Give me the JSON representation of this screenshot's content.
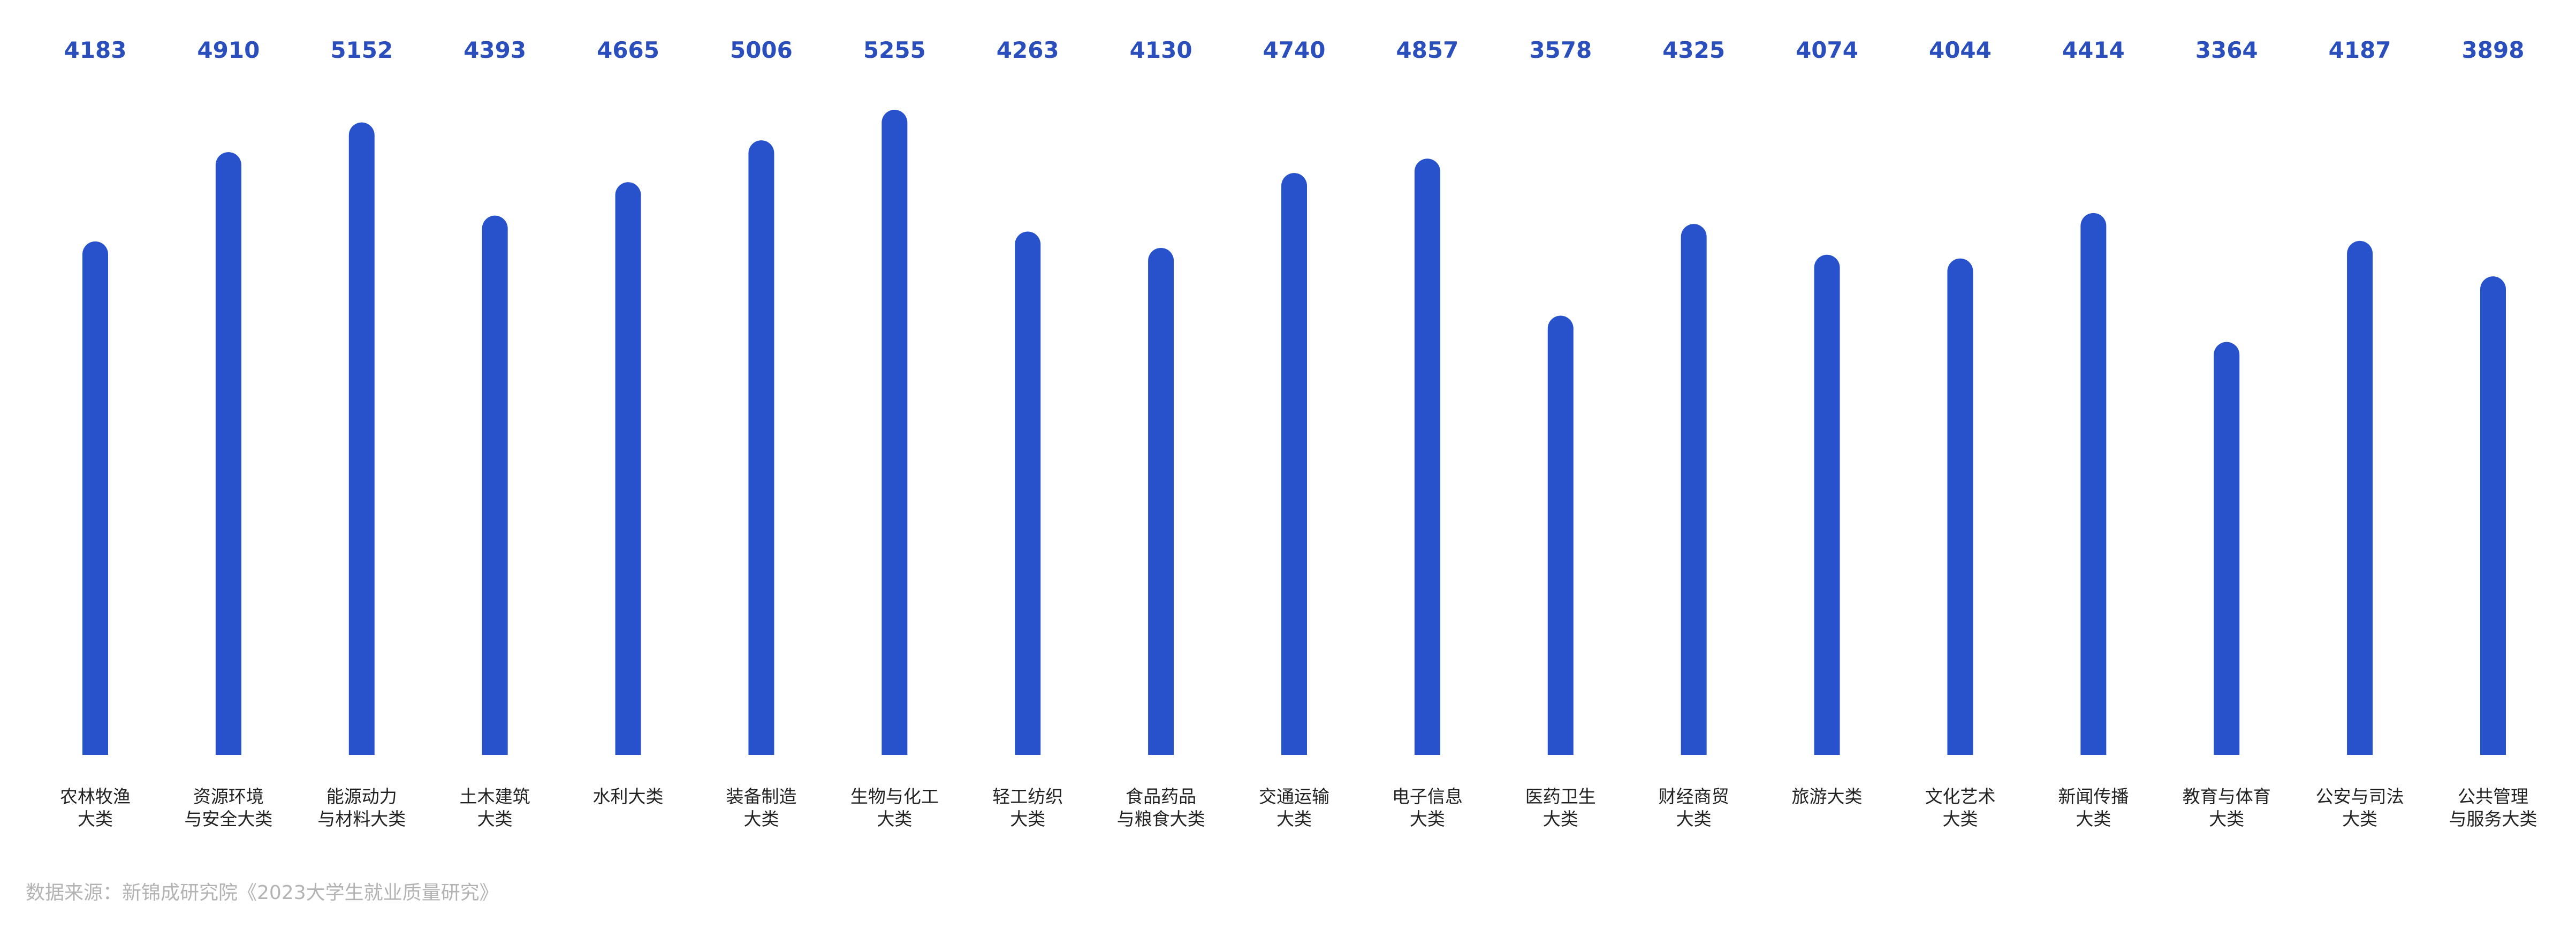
{
  "chart_data": {
    "type": "bar",
    "categories": [
      [
        "农林牧渔",
        "大类"
      ],
      [
        "资源环境",
        "与安全大类"
      ],
      [
        "能源动力",
        "与材料大类"
      ],
      [
        "土木建筑",
        "大类"
      ],
      [
        "水利大类"
      ],
      [
        "装备制造",
        "大类"
      ],
      [
        "生物与化工",
        "大类"
      ],
      [
        "轻工纺织",
        "大类"
      ],
      [
        "食品药品",
        "与粮食大类"
      ],
      [
        "交通运输",
        "大类"
      ],
      [
        "电子信息",
        "大类"
      ],
      [
        "医药卫生",
        "大类"
      ],
      [
        "财经商贸",
        "大类"
      ],
      [
        "旅游大类"
      ],
      [
        "文化艺术",
        "大类"
      ],
      [
        "新闻传播",
        "大类"
      ],
      [
        "教育与体育",
        "大类"
      ],
      [
        "公安与司法",
        "大类"
      ],
      [
        "公共管理",
        "与服务大类"
      ]
    ],
    "values": [
      4183,
      4910,
      5152,
      4393,
      4665,
      5006,
      5255,
      4263,
      4130,
      4740,
      4857,
      3578,
      4325,
      4074,
      4044,
      4414,
      3364,
      4187,
      3898
    ],
    "value_range_shown": [
      0,
      5255
    ],
    "legend": "none",
    "grid": false,
    "colors": {
      "bar": "#2752cb",
      "value_label": "#2a4fbd",
      "category_label": "#222222",
      "source": "#b3b3b3"
    }
  },
  "source_note": "数据来源：新锦成研究院《2023大学生就业质量研究》"
}
